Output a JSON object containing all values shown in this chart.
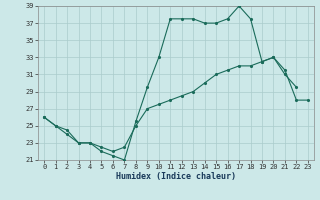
{
  "title": "",
  "xlabel": "Humidex (Indice chaleur)",
  "xlim": [
    -0.5,
    23.5
  ],
  "ylim": [
    21,
    39
  ],
  "yticks": [
    21,
    23,
    25,
    27,
    29,
    31,
    33,
    35,
    37,
    39
  ],
  "xticks": [
    0,
    1,
    2,
    3,
    4,
    5,
    6,
    7,
    8,
    9,
    10,
    11,
    12,
    13,
    14,
    15,
    16,
    17,
    18,
    19,
    20,
    21,
    22,
    23
  ],
  "background_color": "#cce8e8",
  "grid_color": "#aacccc",
  "line_color": "#1a6b5a",
  "line1_x": [
    0,
    1,
    2,
    3,
    4,
    5,
    6,
    7,
    8,
    9,
    10,
    11,
    12,
    13,
    14,
    15,
    16,
    17,
    18,
    19,
    20,
    21,
    22
  ],
  "line1_y": [
    26,
    25,
    24,
    23,
    23,
    22,
    21.5,
    21,
    25.5,
    29.5,
    33,
    37.5,
    37.5,
    37.5,
    37,
    37,
    37.5,
    39,
    37.5,
    32.5,
    33,
    31,
    29.5
  ],
  "line2_x": [
    0,
    1,
    2,
    3,
    4,
    5,
    6,
    7,
    8,
    9,
    10,
    11,
    12,
    13,
    14,
    15,
    16,
    17,
    18,
    19,
    20,
    21,
    22,
    23
  ],
  "line2_y": [
    26,
    25,
    24.5,
    23,
    23,
    22.5,
    22,
    22.5,
    25,
    27,
    27.5,
    28,
    28.5,
    29,
    30,
    31,
    31.5,
    32,
    32,
    32.5,
    33,
    31.5,
    28,
    28
  ],
  "xlabel_fontsize": 6,
  "tick_fontsize": 5,
  "linewidth": 0.8,
  "markersize": 2.5
}
